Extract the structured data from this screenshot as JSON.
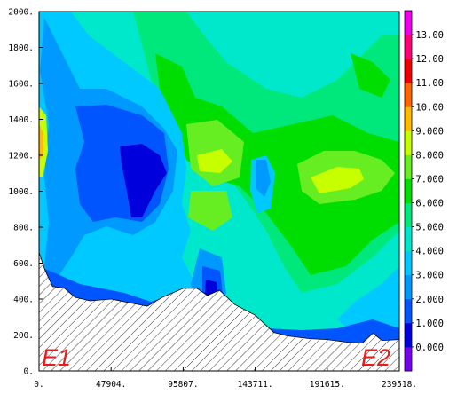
{
  "chart_data": {
    "type": "contour",
    "title": "",
    "xlabel": "",
    "ylabel": "",
    "xlim": [
      0,
      239518
    ],
    "ylim": [
      0,
      2000
    ],
    "x_tick_labels": [
      "0.",
      "47904.",
      "95807.",
      "143711.",
      "191615.",
      "239518."
    ],
    "y_tick_labels": [
      "0.",
      "200.",
      "400.",
      "600.",
      "800.",
      "1000.",
      "1200.",
      "1400.",
      "1600.",
      "1800.",
      "2000."
    ],
    "colorbar": {
      "levels": [
        0,
        1,
        2,
        3,
        4,
        5,
        6,
        7,
        8,
        9,
        10,
        11,
        12,
        13
      ],
      "tick_labels": [
        "0.000",
        "1.000",
        "2.000",
        "3.000",
        "4.000",
        "5.000",
        "6.000",
        "7.000",
        "8.000",
        "9.000",
        "10.00",
        "11.00",
        "12.00",
        "13.00"
      ],
      "colors": [
        "#7700ee",
        "#0000dd",
        "#0055ff",
        "#0099ff",
        "#00c9ff",
        "#00e8cc",
        "#00e87c",
        "#00dd00",
        "#66ee22",
        "#c8ff00",
        "#ffbb00",
        "#ff6600",
        "#ee0000",
        "#ff0077",
        "#ee00ee"
      ]
    },
    "end_labels": [
      "E1",
      "E2"
    ],
    "terrain": [
      [
        0,
        660
      ],
      [
        4000,
        560
      ],
      [
        9000,
        470
      ],
      [
        17000,
        460
      ],
      [
        24000,
        410
      ],
      [
        34000,
        390
      ],
      [
        48000,
        400
      ],
      [
        60000,
        380
      ],
      [
        72000,
        360
      ],
      [
        82000,
        410
      ],
      [
        95807,
        460
      ],
      [
        105000,
        460
      ],
      [
        112000,
        420
      ],
      [
        120000,
        450
      ],
      [
        130000,
        370
      ],
      [
        143711,
        310
      ],
      [
        156000,
        215
      ],
      [
        165000,
        195
      ],
      [
        180000,
        180
      ],
      [
        191615,
        175
      ],
      [
        205000,
        160
      ],
      [
        215000,
        155
      ],
      [
        222000,
        210
      ],
      [
        228000,
        170
      ],
      [
        239518,
        175
      ]
    ]
  }
}
